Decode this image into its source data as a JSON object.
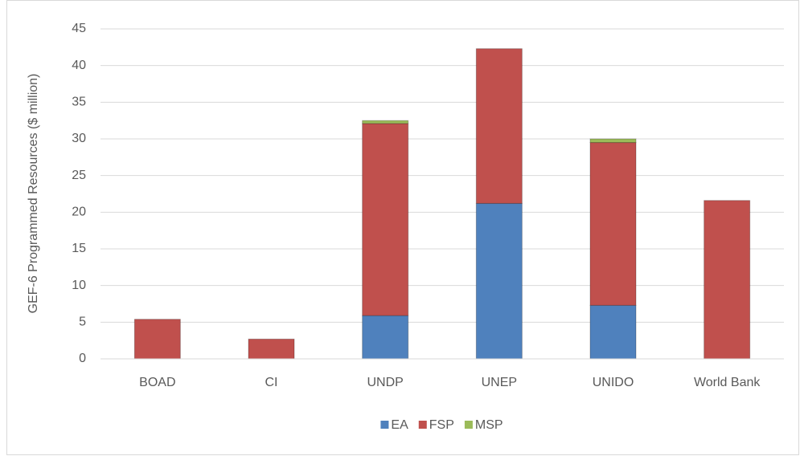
{
  "chart_data": {
    "type": "stacked_bar",
    "y_label": "GEF-6 Programmed Resources ($ million)",
    "categories": [
      "BOAD",
      "CI",
      "UNDP",
      "UNEP",
      "UNIDO",
      "World Bank"
    ],
    "series": [
      {
        "name": "EA",
        "color": "#4f81bd",
        "values": [
          0,
          0,
          5.9,
          21.2,
          7.3,
          0
        ]
      },
      {
        "name": "FSP",
        "color": "#c0504d",
        "values": [
          5.4,
          2.7,
          26.2,
          21.1,
          22.2,
          21.6
        ]
      },
      {
        "name": "MSP",
        "color": "#9bbb59",
        "values": [
          0,
          0,
          0.4,
          0,
          0.5,
          0
        ]
      }
    ],
    "ylim": [
      0,
      45
    ],
    "yticks": [
      0,
      5,
      10,
      15,
      20,
      25,
      30,
      35,
      40,
      45
    ],
    "grid": true,
    "legend": "bottom"
  }
}
